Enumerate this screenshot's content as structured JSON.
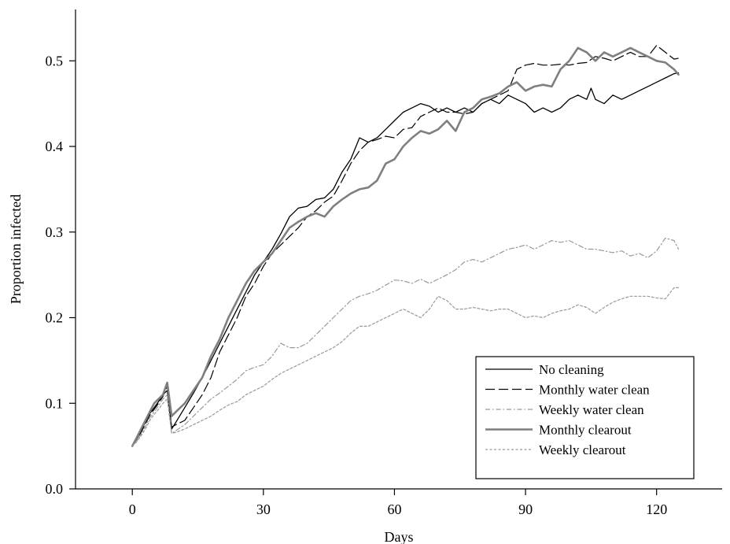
{
  "chart_data": {
    "type": "line",
    "title": "",
    "xlabel": "Days",
    "ylabel": "Proportion infected",
    "xlim": [
      -13,
      135
    ],
    "ylim": [
      0.0,
      0.56
    ],
    "xticks": [
      0,
      30,
      60,
      90,
      120
    ],
    "yticks": [
      0.0,
      0.1,
      0.2,
      0.3,
      0.4,
      0.5
    ],
    "xtick_labels": [
      "0",
      "30",
      "60",
      "90",
      "120"
    ],
    "ytick_labels": [
      "0.0",
      "0.1",
      "0.2",
      "0.3",
      "0.4",
      "0.5"
    ],
    "grid": false,
    "legend_position": "bottom-right",
    "series": [
      {
        "name": "No cleaning",
        "color": "#000000",
        "style": "solid",
        "x": [
          0,
          1,
          2,
          3,
          4,
          5,
          6,
          7,
          8,
          9,
          10,
          12,
          14,
          16,
          18,
          20,
          22,
          24,
          26,
          28,
          30,
          32,
          34,
          36,
          38,
          40,
          42,
          44,
          46,
          48,
          50,
          52,
          54,
          56,
          58,
          60,
          62,
          64,
          66,
          68,
          70,
          72,
          74,
          76,
          78,
          80,
          82,
          84,
          86,
          88,
          90,
          92,
          94,
          96,
          98,
          100,
          102,
          104,
          105,
          106,
          108,
          110,
          112,
          114,
          116,
          118,
          120,
          122,
          124,
          125
        ],
        "y": [
          0.05,
          0.058,
          0.068,
          0.078,
          0.088,
          0.095,
          0.102,
          0.11,
          0.115,
          0.07,
          0.078,
          0.095,
          0.112,
          0.13,
          0.15,
          0.17,
          0.19,
          0.21,
          0.23,
          0.25,
          0.265,
          0.28,
          0.298,
          0.318,
          0.328,
          0.33,
          0.338,
          0.34,
          0.35,
          0.37,
          0.385,
          0.41,
          0.405,
          0.41,
          0.42,
          0.43,
          0.44,
          0.445,
          0.45,
          0.447,
          0.44,
          0.445,
          0.44,
          0.445,
          0.44,
          0.45,
          0.455,
          0.45,
          0.46,
          0.455,
          0.45,
          0.44,
          0.445,
          0.44,
          0.445,
          0.455,
          0.46,
          0.455,
          0.468,
          0.455,
          0.45,
          0.46,
          0.455,
          0.46,
          0.465,
          0.47,
          0.475,
          0.48,
          0.485,
          0.486
        ]
      },
      {
        "name": "Monthly water clean",
        "color": "#000000",
        "style": "dashed",
        "x": [
          0,
          1,
          2,
          3,
          4,
          5,
          6,
          7,
          8,
          9,
          10,
          12,
          14,
          16,
          18,
          20,
          22,
          24,
          26,
          28,
          30,
          32,
          34,
          36,
          38,
          40,
          42,
          44,
          46,
          48,
          50,
          52,
          54,
          56,
          58,
          60,
          62,
          64,
          66,
          68,
          70,
          72,
          74,
          76,
          78,
          80,
          82,
          84,
          86,
          88,
          90,
          92,
          94,
          96,
          98,
          100,
          102,
          104,
          106,
          108,
          110,
          112,
          114,
          116,
          118,
          120,
          122,
          124,
          125
        ],
        "y": [
          0.05,
          0.058,
          0.066,
          0.076,
          0.086,
          0.093,
          0.1,
          0.108,
          0.12,
          0.072,
          0.075,
          0.08,
          0.095,
          0.11,
          0.13,
          0.16,
          0.18,
          0.2,
          0.225,
          0.24,
          0.26,
          0.275,
          0.285,
          0.295,
          0.305,
          0.318,
          0.325,
          0.335,
          0.342,
          0.36,
          0.38,
          0.395,
          0.405,
          0.408,
          0.412,
          0.41,
          0.42,
          0.422,
          0.435,
          0.44,
          0.445,
          0.44,
          0.44,
          0.438,
          0.44,
          0.45,
          0.455,
          0.46,
          0.465,
          0.49,
          0.495,
          0.497,
          0.495,
          0.495,
          0.496,
          0.495,
          0.497,
          0.498,
          0.505,
          0.503,
          0.5,
          0.505,
          0.51,
          0.505,
          0.505,
          0.518,
          0.51,
          0.502,
          0.503
        ]
      },
      {
        "name": "Weekly water clean",
        "color": "#999999",
        "style": "dashdot",
        "x": [
          0,
          1,
          2,
          3,
          4,
          5,
          6,
          7,
          8,
          9,
          10,
          12,
          14,
          16,
          18,
          20,
          22,
          24,
          26,
          28,
          30,
          32,
          34,
          36,
          38,
          40,
          42,
          44,
          46,
          48,
          50,
          52,
          54,
          56,
          58,
          60,
          62,
          64,
          66,
          68,
          70,
          72,
          74,
          76,
          78,
          80,
          82,
          84,
          86,
          88,
          90,
          92,
          94,
          96,
          98,
          100,
          102,
          104,
          106,
          108,
          110,
          112,
          114,
          116,
          118,
          120,
          122,
          124,
          125
        ],
        "y": [
          0.05,
          0.056,
          0.064,
          0.073,
          0.083,
          0.09,
          0.097,
          0.105,
          0.11,
          0.065,
          0.068,
          0.075,
          0.085,
          0.095,
          0.105,
          0.112,
          0.12,
          0.128,
          0.138,
          0.142,
          0.145,
          0.155,
          0.17,
          0.165,
          0.165,
          0.17,
          0.18,
          0.19,
          0.2,
          0.21,
          0.22,
          0.225,
          0.228,
          0.232,
          0.238,
          0.244,
          0.243,
          0.24,
          0.245,
          0.24,
          0.245,
          0.25,
          0.256,
          0.265,
          0.268,
          0.265,
          0.27,
          0.275,
          0.28,
          0.282,
          0.285,
          0.28,
          0.285,
          0.29,
          0.288,
          0.29,
          0.285,
          0.28,
          0.28,
          0.278,
          0.276,
          0.278,
          0.272,
          0.275,
          0.27,
          0.278,
          0.293,
          0.29,
          0.28
        ]
      },
      {
        "name": "Monthly clearout",
        "color": "#7f7f7f",
        "style": "solid-thick",
        "x": [
          0,
          1,
          2,
          3,
          4,
          5,
          6,
          7,
          8,
          9,
          10,
          12,
          14,
          16,
          18,
          20,
          22,
          24,
          26,
          28,
          30,
          32,
          34,
          36,
          38,
          40,
          42,
          44,
          46,
          48,
          50,
          52,
          54,
          56,
          58,
          60,
          62,
          64,
          66,
          68,
          70,
          72,
          74,
          76,
          78,
          80,
          82,
          84,
          86,
          88,
          90,
          92,
          94,
          96,
          98,
          100,
          102,
          104,
          106,
          108,
          110,
          112,
          114,
          116,
          118,
          120,
          122,
          124,
          125
        ],
        "y": [
          0.05,
          0.06,
          0.07,
          0.08,
          0.09,
          0.1,
          0.105,
          0.11,
          0.124,
          0.085,
          0.09,
          0.1,
          0.115,
          0.13,
          0.155,
          0.175,
          0.2,
          0.22,
          0.24,
          0.255,
          0.265,
          0.275,
          0.29,
          0.305,
          0.312,
          0.318,
          0.322,
          0.318,
          0.33,
          0.338,
          0.345,
          0.35,
          0.352,
          0.36,
          0.38,
          0.385,
          0.4,
          0.41,
          0.418,
          0.415,
          0.42,
          0.43,
          0.418,
          0.44,
          0.445,
          0.455,
          0.458,
          0.462,
          0.47,
          0.475,
          0.465,
          0.47,
          0.472,
          0.47,
          0.49,
          0.5,
          0.515,
          0.51,
          0.5,
          0.51,
          0.505,
          0.51,
          0.515,
          0.51,
          0.505,
          0.5,
          0.498,
          0.49,
          0.484
        ]
      },
      {
        "name": "Weekly clearout",
        "color": "#999999",
        "style": "dotted",
        "x": [
          0,
          1,
          2,
          3,
          4,
          5,
          6,
          7,
          8,
          9,
          10,
          12,
          14,
          16,
          18,
          20,
          22,
          24,
          26,
          28,
          30,
          32,
          34,
          36,
          38,
          40,
          42,
          44,
          46,
          48,
          50,
          52,
          54,
          56,
          58,
          60,
          62,
          64,
          66,
          68,
          70,
          72,
          74,
          76,
          78,
          80,
          82,
          84,
          86,
          88,
          90,
          92,
          94,
          96,
          98,
          100,
          102,
          104,
          106,
          108,
          110,
          112,
          114,
          116,
          118,
          120,
          122,
          124,
          125
        ],
        "y": [
          0.05,
          0.055,
          0.062,
          0.07,
          0.08,
          0.087,
          0.093,
          0.1,
          0.105,
          0.065,
          0.066,
          0.07,
          0.075,
          0.08,
          0.085,
          0.092,
          0.098,
          0.102,
          0.11,
          0.115,
          0.12,
          0.128,
          0.135,
          0.14,
          0.145,
          0.15,
          0.155,
          0.16,
          0.165,
          0.172,
          0.182,
          0.19,
          0.19,
          0.195,
          0.2,
          0.205,
          0.21,
          0.205,
          0.2,
          0.21,
          0.225,
          0.22,
          0.21,
          0.21,
          0.212,
          0.21,
          0.208,
          0.21,
          0.21,
          0.205,
          0.2,
          0.202,
          0.2,
          0.205,
          0.208,
          0.21,
          0.215,
          0.212,
          0.205,
          0.212,
          0.218,
          0.222,
          0.225,
          0.225,
          0.225,
          0.223,
          0.222,
          0.235,
          0.235
        ]
      }
    ]
  }
}
